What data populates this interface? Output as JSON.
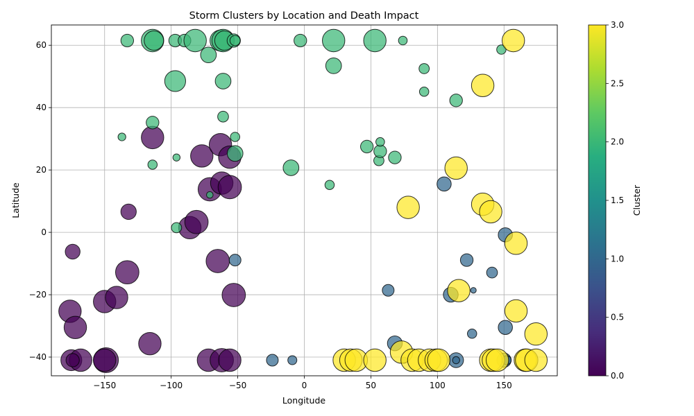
{
  "chart_data": {
    "type": "scatter",
    "title": "Storm Clusters by Location and Death Impact",
    "xlabel": "Longitude",
    "ylabel": "Latitude",
    "xlim": [
      -190,
      190
    ],
    "ylim": [
      -46,
      66.5
    ],
    "xticks": [
      -150,
      -100,
      -50,
      0,
      50,
      100,
      150
    ],
    "yticks": [
      -40,
      -20,
      0,
      20,
      40,
      60
    ],
    "grid": true,
    "colorbar": {
      "label": "Cluster",
      "min": 0,
      "max": 3,
      "ticks": [
        0.0,
        0.5,
        1.0,
        1.5,
        2.0,
        2.5,
        3.0
      ],
      "tick_labels": [
        "0.0",
        "0.5",
        "1.0",
        "1.5",
        "2.0",
        "2.5",
        "3.0"
      ],
      "colormap": "viridis"
    },
    "points": [
      {
        "x": -174,
        "y": -6.2,
        "c": 0,
        "s": 0.35
      },
      {
        "x": -176,
        "y": -25.3,
        "c": 0,
        "s": 0.6
      },
      {
        "x": -172,
        "y": -30.5,
        "c": 0,
        "s": 0.6
      },
      {
        "x": -175,
        "y": -41,
        "c": 0,
        "s": 0.55
      },
      {
        "x": -168,
        "y": -41,
        "c": 0,
        "s": 0.6
      },
      {
        "x": -174,
        "y": -41,
        "c": 0,
        "s": 0.3
      },
      {
        "x": -150,
        "y": -22.2,
        "c": 0,
        "s": 0.6
      },
      {
        "x": -149,
        "y": -41,
        "c": 0,
        "s": 0.68
      },
      {
        "x": -150,
        "y": -41,
        "c": 0,
        "s": 0.6
      },
      {
        "x": -141,
        "y": -20.9,
        "c": 0,
        "s": 0.6
      },
      {
        "x": -133,
        "y": -12.8,
        "c": 0,
        "s": 0.63
      },
      {
        "x": -132,
        "y": 6.6,
        "c": 0,
        "s": 0.37
      },
      {
        "x": -116,
        "y": -35.7,
        "c": 0,
        "s": 0.6
      },
      {
        "x": -114,
        "y": 30.4,
        "c": 0,
        "s": 0.6
      },
      {
        "x": -86,
        "y": 1.5,
        "c": 0,
        "s": 0.6
      },
      {
        "x": -81,
        "y": 3.3,
        "c": 0,
        "s": 0.63
      },
      {
        "x": -77,
        "y": 24.5,
        "c": 0,
        "s": 0.6
      },
      {
        "x": -71,
        "y": 13.8,
        "c": 0,
        "s": 0.63
      },
      {
        "x": -72,
        "y": -41,
        "c": 0,
        "s": 0.6
      },
      {
        "x": -65,
        "y": -9.2,
        "c": 0,
        "s": 0.63
      },
      {
        "x": -63,
        "y": 28.1,
        "c": 0,
        "s": 0.6
      },
      {
        "x": -62,
        "y": 15.8,
        "c": 0,
        "s": 0.6
      },
      {
        "x": -62,
        "y": -41,
        "c": 0,
        "s": 0.63
      },
      {
        "x": -56,
        "y": 24.1,
        "c": 0,
        "s": 0.6
      },
      {
        "x": -56,
        "y": 14.5,
        "c": 0,
        "s": 0.63
      },
      {
        "x": -56,
        "y": -41,
        "c": 0,
        "s": 0.6
      },
      {
        "x": -53,
        "y": -20.1,
        "c": 0,
        "s": 0.63
      },
      {
        "x": -52,
        "y": -8.9,
        "c": 1,
        "s": 0.25
      },
      {
        "x": -24,
        "y": -41,
        "c": 1,
        "s": 0.25
      },
      {
        "x": -9,
        "y": -41,
        "c": 1,
        "s": 0.16
      },
      {
        "x": 63,
        "y": -18.6,
        "c": 1,
        "s": 0.25
      },
      {
        "x": 68,
        "y": -35.6,
        "c": 1,
        "s": 0.35
      },
      {
        "x": 105,
        "y": 15.5,
        "c": 1,
        "s": 0.33
      },
      {
        "x": 110,
        "y": -20,
        "c": 1,
        "s": 0.35
      },
      {
        "x": 114,
        "y": -41,
        "c": 1,
        "s": 0.35
      },
      {
        "x": 114,
        "y": -41,
        "c": 1,
        "s": 0.1
      },
      {
        "x": 122,
        "y": -8.9,
        "c": 1,
        "s": 0.28
      },
      {
        "x": 126,
        "y": -32.5,
        "c": 1,
        "s": 0.17
      },
      {
        "x": 127,
        "y": -18.6,
        "c": 1,
        "s": 0.05
      },
      {
        "x": 141,
        "y": -12.9,
        "c": 1,
        "s": 0.22
      },
      {
        "x": 151,
        "y": -0.8,
        "c": 1,
        "s": 0.33
      },
      {
        "x": 151,
        "y": -30.5,
        "c": 1,
        "s": 0.33
      },
      {
        "x": 150,
        "y": -41,
        "c": 1,
        "s": 0.33
      },
      {
        "x": 152,
        "y": -41,
        "c": 1,
        "s": 0.16
      },
      {
        "x": 75,
        "y": -41,
        "c": 1,
        "s": 0.07
      },
      {
        "x": -133,
        "y": 61.5,
        "c": 2,
        "s": 0.28
      },
      {
        "x": -137,
        "y": 30.6,
        "c": 2,
        "s": 0.12
      },
      {
        "x": -114,
        "y": 61.5,
        "c": 2,
        "s": 0.6
      },
      {
        "x": -113,
        "y": 61.5,
        "c": 2,
        "s": 0.5
      },
      {
        "x": -114,
        "y": 35.2,
        "c": 2,
        "s": 0.28
      },
      {
        "x": -114,
        "y": 21.7,
        "c": 2,
        "s": 0.17
      },
      {
        "x": -97,
        "y": 61.5,
        "c": 2,
        "s": 0.28
      },
      {
        "x": -97,
        "y": 48.5,
        "c": 2,
        "s": 0.55
      },
      {
        "x": -96,
        "y": 24,
        "c": 2,
        "s": 0.1
      },
      {
        "x": -96,
        "y": 1.5,
        "c": 2,
        "s": 0.2
      },
      {
        "x": -90,
        "y": 61.5,
        "c": 2,
        "s": 0.28
      },
      {
        "x": -82,
        "y": 61.5,
        "c": 2,
        "s": 0.6
      },
      {
        "x": -72,
        "y": 56.9,
        "c": 2,
        "s": 0.38
      },
      {
        "x": -71,
        "y": 12,
        "c": 2,
        "s": 0.08
      },
      {
        "x": -63,
        "y": 61.5,
        "c": 2,
        "s": 0.55
      },
      {
        "x": -61,
        "y": 61.5,
        "c": 2,
        "s": 0.6
      },
      {
        "x": -60,
        "y": 61.5,
        "c": 2,
        "s": 0.5
      },
      {
        "x": -61,
        "y": 48.5,
        "c": 2,
        "s": 0.38
      },
      {
        "x": -61,
        "y": 37.1,
        "c": 2,
        "s": 0.22
      },
      {
        "x": -53,
        "y": 61.5,
        "c": 2,
        "s": 0.3
      },
      {
        "x": -52,
        "y": 61.5,
        "c": 2,
        "s": 0.2
      },
      {
        "x": -52,
        "y": 30.6,
        "c": 2,
        "s": 0.17
      },
      {
        "x": -52,
        "y": 25.3,
        "c": 2,
        "s": 0.38
      },
      {
        "x": -10,
        "y": 20.7,
        "c": 2,
        "s": 0.38
      },
      {
        "x": -3,
        "y": 61.5,
        "c": 2,
        "s": 0.28
      },
      {
        "x": 19,
        "y": 15.2,
        "c": 2,
        "s": 0.17
      },
      {
        "x": 22,
        "y": 61.5,
        "c": 2,
        "s": 0.6
      },
      {
        "x": 22,
        "y": 53.4,
        "c": 2,
        "s": 0.38
      },
      {
        "x": 47,
        "y": 27.5,
        "c": 2,
        "s": 0.28
      },
      {
        "x": 53,
        "y": 61.5,
        "c": 2,
        "s": 0.6
      },
      {
        "x": 56,
        "y": 23,
        "c": 2,
        "s": 0.2
      },
      {
        "x": 57,
        "y": 26,
        "c": 2,
        "s": 0.28
      },
      {
        "x": 57,
        "y": 29,
        "c": 2,
        "s": 0.15
      },
      {
        "x": 68,
        "y": 24,
        "c": 2,
        "s": 0.28
      },
      {
        "x": 74,
        "y": 61.5,
        "c": 2,
        "s": 0.15
      },
      {
        "x": 90,
        "y": 52.5,
        "c": 2,
        "s": 0.2
      },
      {
        "x": 90,
        "y": 45.1,
        "c": 2,
        "s": 0.17
      },
      {
        "x": 114,
        "y": 42.3,
        "c": 2,
        "s": 0.28
      },
      {
        "x": 148,
        "y": 58.6,
        "c": 2,
        "s": 0.17
      },
      {
        "x": 30,
        "y": -41,
        "c": 3,
        "s": 0.6
      },
      {
        "x": 35,
        "y": -41,
        "c": 3,
        "s": 0.6
      },
      {
        "x": 39,
        "y": -41,
        "c": 3,
        "s": 0.6
      },
      {
        "x": 53,
        "y": -41,
        "c": 3,
        "s": 0.6
      },
      {
        "x": 73,
        "y": -38.4,
        "c": 3,
        "s": 0.6
      },
      {
        "x": 78,
        "y": 8,
        "c": 3,
        "s": 0.6
      },
      {
        "x": 81,
        "y": -41,
        "c": 3,
        "s": 0.6
      },
      {
        "x": 86,
        "y": -41,
        "c": 3,
        "s": 0.6
      },
      {
        "x": 94,
        "y": -41,
        "c": 3,
        "s": 0.6
      },
      {
        "x": 99,
        "y": -41,
        "c": 3,
        "s": 0.6
      },
      {
        "x": 101,
        "y": -41,
        "c": 3,
        "s": 0.6
      },
      {
        "x": 114,
        "y": 20.6,
        "c": 3,
        "s": 0.6
      },
      {
        "x": 116,
        "y": -18.7,
        "c": 3,
        "s": 0.6
      },
      {
        "x": 134,
        "y": 9,
        "c": 3,
        "s": 0.6
      },
      {
        "x": 134,
        "y": 47.1,
        "c": 3,
        "s": 0.6
      },
      {
        "x": 140,
        "y": 6.6,
        "c": 3,
        "s": 0.6
      },
      {
        "x": 140,
        "y": -41,
        "c": 3,
        "s": 0.6
      },
      {
        "x": 142,
        "y": -41,
        "c": 3,
        "s": 0.6
      },
      {
        "x": 145,
        "y": -41,
        "c": 3,
        "s": 0.6
      },
      {
        "x": 157,
        "y": 61.5,
        "c": 3,
        "s": 0.6
      },
      {
        "x": 159,
        "y": -3.5,
        "c": 3,
        "s": 0.6
      },
      {
        "x": 159,
        "y": -25.2,
        "c": 3,
        "s": 0.6
      },
      {
        "x": 166,
        "y": -41,
        "c": 3,
        "s": 0.6
      },
      {
        "x": 167,
        "y": -41,
        "c": 3,
        "s": 0.6
      },
      {
        "x": 174,
        "y": -32.6,
        "c": 3,
        "s": 0.6
      },
      {
        "x": 174,
        "y": -41,
        "c": 3,
        "s": 0.6
      }
    ]
  }
}
